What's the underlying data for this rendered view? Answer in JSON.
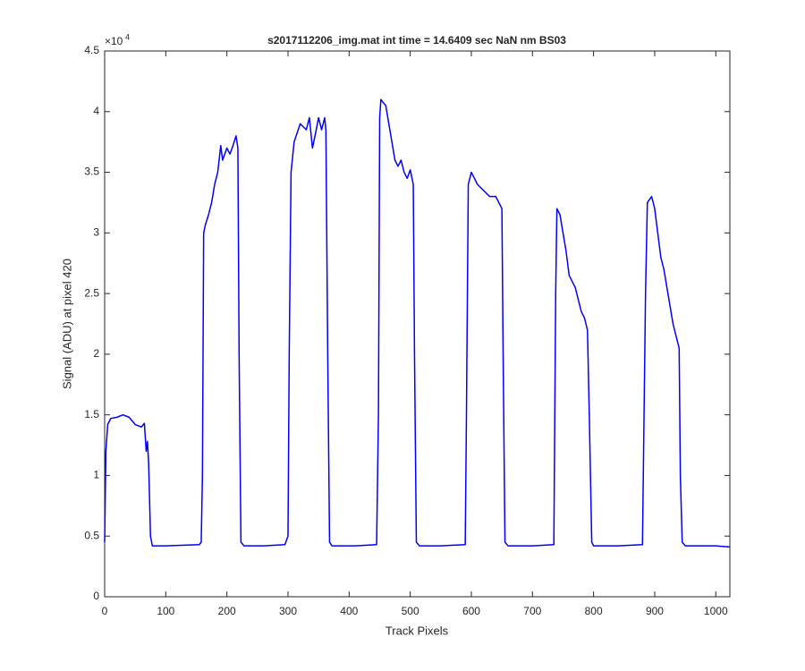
{
  "chart_data": {
    "type": "line",
    "title": "s2017112206_img.mat int time = 14.6409 sec  NaN nm BS03",
    "x_label": "Track Pixels",
    "y_label": "Signal (ADU) at pixel 420",
    "y_scale_base": "×10",
    "y_scale_exponent": "4",
    "x": [
      0,
      2,
      5,
      10,
      20,
      30,
      40,
      50,
      60,
      65,
      68,
      70,
      72,
      75,
      78,
      100,
      155,
      158,
      160,
      162,
      165,
      170,
      175,
      180,
      185,
      190,
      193,
      200,
      205,
      210,
      215,
      218,
      220,
      223,
      228,
      260,
      295,
      300,
      302,
      305,
      310,
      320,
      330,
      335,
      340,
      345,
      350,
      355,
      360,
      362,
      365,
      368,
      372,
      410,
      445,
      448,
      450,
      452,
      455,
      460,
      465,
      470,
      475,
      480,
      485,
      490,
      495,
      500,
      505,
      507,
      510,
      515,
      550,
      590,
      592,
      595,
      600,
      605,
      610,
      620,
      630,
      640,
      645,
      650,
      652,
      655,
      660,
      700,
      735,
      738,
      740,
      745,
      750,
      755,
      760,
      765,
      770,
      775,
      780,
      785,
      790,
      793,
      797,
      800,
      840,
      880,
      885,
      888,
      895,
      900,
      905,
      910,
      915,
      920,
      925,
      930,
      935,
      940,
      942,
      945,
      950,
      1000,
      1023
    ],
    "series": [
      {
        "name": "signal",
        "color": "#0000ff",
        "values": [
          0.45,
          1.2,
          1.42,
          1.47,
          1.48,
          1.5,
          1.48,
          1.42,
          1.4,
          1.43,
          1.2,
          1.28,
          1.1,
          0.5,
          0.42,
          0.42,
          0.43,
          0.45,
          1.0,
          3.0,
          3.07,
          3.15,
          3.25,
          3.4,
          3.5,
          3.72,
          3.6,
          3.7,
          3.65,
          3.72,
          3.8,
          3.7,
          2.0,
          0.45,
          0.42,
          0.42,
          0.43,
          0.5,
          2.0,
          3.5,
          3.75,
          3.9,
          3.85,
          3.95,
          3.7,
          3.82,
          3.95,
          3.85,
          3.95,
          3.85,
          2.0,
          0.45,
          0.42,
          0.42,
          0.43,
          1.5,
          3.95,
          4.1,
          4.08,
          4.05,
          3.9,
          3.75,
          3.6,
          3.55,
          3.6,
          3.5,
          3.45,
          3.52,
          3.4,
          2.0,
          0.45,
          0.42,
          0.42,
          0.43,
          1.5,
          3.4,
          3.5,
          3.45,
          3.4,
          3.35,
          3.3,
          3.3,
          3.25,
          3.2,
          2.0,
          0.45,
          0.42,
          0.42,
          0.43,
          2.5,
          3.2,
          3.15,
          3.0,
          2.85,
          2.65,
          2.6,
          2.55,
          2.45,
          2.35,
          2.3,
          2.2,
          1.5,
          0.45,
          0.42,
          0.42,
          0.43,
          2.5,
          3.25,
          3.3,
          3.2,
          3.0,
          2.8,
          2.7,
          2.55,
          2.4,
          2.25,
          2.15,
          2.05,
          1.0,
          0.45,
          0.42,
          0.42,
          0.41
        ]
      }
    ],
    "xlim": [
      0,
      1023
    ],
    "ylim": [
      0,
      4.5
    ],
    "xticks": [
      0,
      100,
      200,
      300,
      400,
      500,
      600,
      700,
      800,
      900,
      1000
    ],
    "yticks": [
      0,
      0.5,
      1,
      1.5,
      2,
      2.5,
      3,
      3.5,
      4,
      4.5
    ],
    "grid": false
  }
}
